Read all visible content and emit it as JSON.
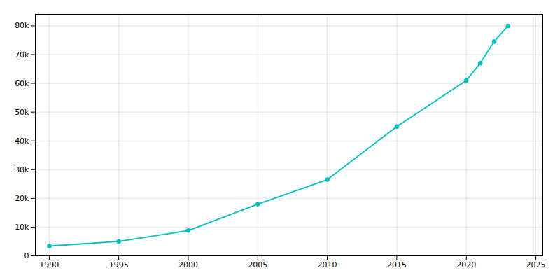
{
  "chart_data": {
    "type": "line",
    "x": [
      1990,
      1995,
      2000,
      2005,
      2010,
      2015,
      2020,
      2021,
      2022,
      2023
    ],
    "values": [
      3410,
      5000,
      8800,
      18000,
      26521,
      45000,
      61000,
      67000,
      74500,
      80000
    ],
    "color": "#00BEBE",
    "marker": "circle",
    "xlim": [
      1989,
      2025.5
    ],
    "xticks": [
      1990,
      1995,
      2000,
      2005,
      2010,
      2015,
      2020,
      2025
    ],
    "ylim": [
      0,
      84000
    ],
    "yticks": [
      0,
      {
        "value": 10000,
        "label": "10k"
      },
      {
        "value": 20000,
        "label": "20k"
      },
      {
        "value": 30000,
        "label": "30k"
      },
      {
        "value": 40000,
        "label": "40k"
      },
      {
        "value": 50000,
        "label": "50k"
      },
      {
        "value": 60000,
        "label": "60k"
      },
      {
        "value": 70000,
        "label": "70k"
      },
      {
        "value": 80000,
        "label": "80k"
      }
    ],
    "grid": true
  }
}
